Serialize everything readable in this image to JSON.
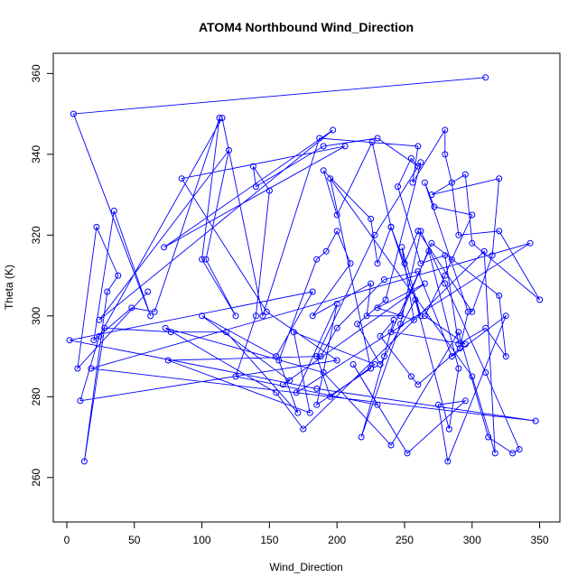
{
  "chart_data": {
    "type": "line",
    "title": "ATOM4 Northbound Wind_Direction",
    "xlabel": "Wind_Direction",
    "ylabel": "Theta (K)",
    "xlim": [
      -10,
      365
    ],
    "ylim": [
      249,
      365
    ],
    "xticks": [
      0,
      50,
      100,
      150,
      200,
      250,
      300,
      350
    ],
    "yticks": [
      260,
      280,
      300,
      320,
      340,
      360
    ],
    "grid": false,
    "series_color": "#0000ff",
    "marker": "open-circle",
    "series": [
      {
        "x": [
          310,
          5,
          62,
          35,
          20,
          48,
          65,
          113,
          100,
          125,
          103,
          120,
          24,
          197,
          72,
          206,
          85,
          148,
          200,
          10,
          24,
          115,
          145,
          187,
          260,
          256,
          280,
          280,
          285,
          290,
          320,
          350,
          300,
          295,
          270,
          320,
          315,
          300,
          260,
          250,
          240,
          230,
          225,
          190,
          200,
          226,
          240,
          262,
          248,
          257,
          230,
          265,
          160,
          165,
          100,
          155,
          182,
          2,
          185,
          347,
          18,
          343,
          170,
          200,
          185,
          225,
          195,
          300,
          317,
          309,
          175,
          155,
          73,
          190,
          240,
          290,
          312,
          330,
          335,
          310,
          280,
          262,
          247,
          218,
          235,
          242,
          232,
          255,
          260,
          291,
          297,
          265,
          272,
          300,
          285,
          280,
          265,
          295,
          240,
          268,
          290,
          283,
          258,
          232,
          215,
          236,
          262,
          228,
          185,
          195,
          228,
          168,
          180,
          75,
          188,
          200,
          235,
          260,
          285,
          325,
          282,
          275,
          295,
          252,
          212,
          230,
          125,
          140,
          150,
          138,
          140,
          190,
          230,
          260,
          255,
          245,
          262,
          280,
          290,
          310,
          325,
          320,
          270,
          247,
          222,
          225,
          182,
          210,
          200,
          192,
          185,
          157,
          171,
          118,
          77,
          28,
          13,
          30,
          38,
          22,
          8,
          60
        ],
        "y": [
          359,
          350,
          300,
          326,
          294,
          302,
          301,
          349,
          314,
          300,
          314,
          341,
          299,
          346,
          317,
          342,
          334,
          301,
          289,
          279,
          295,
          349,
          300,
          344,
          342,
          333,
          346,
          340,
          333,
          320,
          321,
          304,
          318,
          335,
          330,
          334,
          315,
          301,
          321,
          313,
          322,
          313,
          324,
          336,
          325,
          343,
          322,
          300,
          317,
          299,
          302,
          308,
          283,
          284,
          300,
          290,
          306,
          294,
          282,
          274,
          287,
          318,
          281,
          303,
          278,
          287,
          334,
          285,
          266,
          316,
          272,
          281,
          297,
          286,
          268,
          296,
          270,
          266,
          267,
          286,
          308,
          321,
          298,
          270,
          290,
          299,
          295,
          285,
          283,
          292,
          301,
          333,
          327,
          325,
          314,
          310,
          300,
          293,
          296,
          316,
          287,
          272,
          304,
          288,
          298,
          304,
          338,
          320,
          290,
          280,
          288,
          296,
          276,
          289,
          290,
          297,
          309,
          311,
          290,
          300,
          264,
          278,
          279,
          266,
          288,
          278,
          285,
          300,
          331,
          337,
          332,
          342,
          344,
          337,
          339,
          332,
          313,
          315,
          293,
          297,
          290,
          305,
          318,
          300,
          300,
          308,
          300,
          313,
          321,
          316,
          314,
          289,
          276,
          296,
          296,
          297,
          264,
          306,
          310,
          322,
          287,
          306
        ]
      }
    ]
  }
}
